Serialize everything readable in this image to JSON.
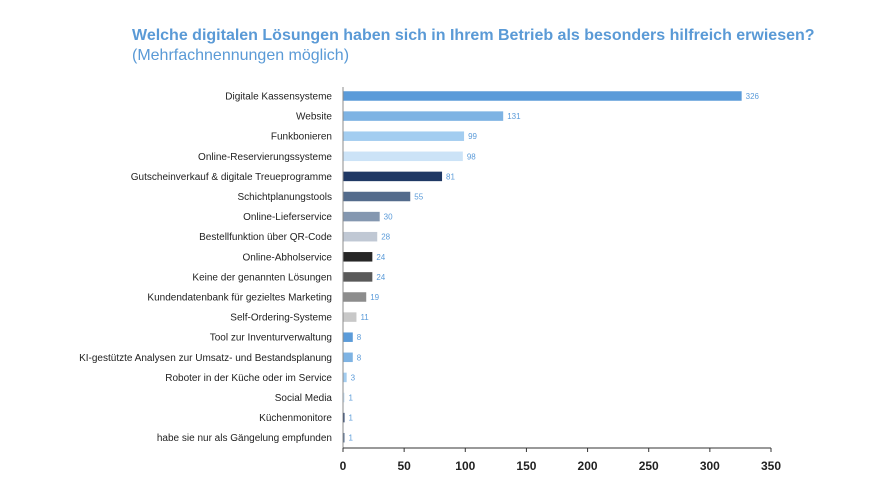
{
  "chart_data": {
    "type": "bar",
    "orientation": "horizontal",
    "title": "Welche digitalen Lösungen haben sich in Ihrem Betrieb als besonders hilfreich erwiesen?",
    "subtitle": "(Mehrfachnennungen möglich)",
    "xlabel": "",
    "ylabel": "",
    "xlim": [
      0,
      350
    ],
    "xticks": [
      0,
      50,
      100,
      150,
      200,
      250,
      300,
      350
    ],
    "grid": false,
    "categories": [
      "Digitale Kassensysteme",
      "Website",
      "Funkbonieren",
      "Online-Reservierungssysteme",
      "Gutscheinverkauf & digitale Treueprogramme",
      "Schichtplanungstools",
      "Online-Lieferservice",
      "Bestellfunktion über QR-Code",
      "Online-Abholservice",
      "Keine der genannten Lösungen",
      "Kundendatenbank für gezieltes Marketing",
      "Self-Ordering-Systeme",
      "Tool zur Inventurverwaltung",
      "KI-gestützte Analysen zur Umsatz- und Bestandsplanung",
      "Roboter in der Küche oder im Service",
      "Social Media",
      "Küchenmonitore",
      "habe sie nur als Gängelung empfunden"
    ],
    "values": [
      326,
      131,
      99,
      98,
      81,
      55,
      30,
      28,
      24,
      24,
      19,
      11,
      8,
      8,
      3,
      1,
      1,
      1
    ],
    "colors": [
      "#5b9bd9",
      "#7eb3e3",
      "#a3cdf0",
      "#cce3f7",
      "#1f3864",
      "#536b8c",
      "#8497b0",
      "#c0c8d4",
      "#262626",
      "#595959",
      "#8c8c8c",
      "#c8c8c8",
      "#5b9bd9",
      "#7eb3e3",
      "#a3cdf0",
      "#cce3f7",
      "#1f3864",
      "#536b8c"
    ],
    "label_color": "#5b9bd9"
  }
}
